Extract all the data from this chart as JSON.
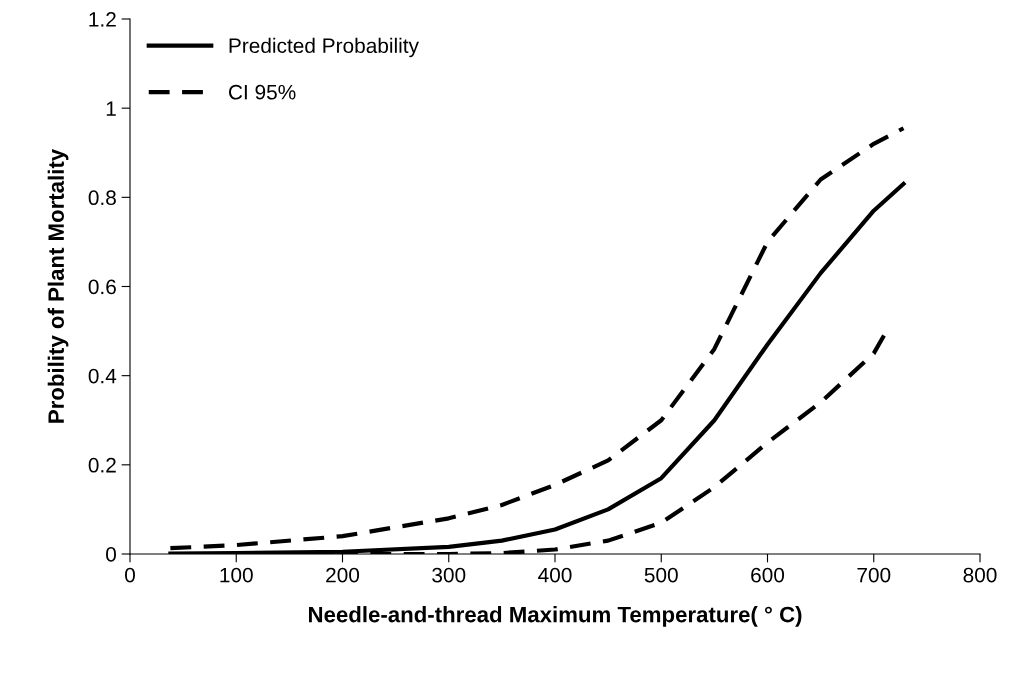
{
  "chart_data": {
    "type": "line",
    "xlabel": "Needle-and-thread Maximum Temperature( ° C)",
    "ylabel": "Probility of Plant Mortality",
    "xlim": [
      0,
      800
    ],
    "xticks": [
      0,
      100,
      200,
      300,
      400,
      500,
      600,
      700,
      800
    ],
    "ylim": [
      0,
      1.2
    ],
    "yticks": [
      0,
      0.2,
      0.4,
      0.6,
      0.8,
      1,
      1.2
    ],
    "grid": false,
    "legend": "top left",
    "marker": "none",
    "series": [
      {
        "name": "Predicted Probability",
        "color": "#000000",
        "line_style": "solid",
        "x": [
          38,
          100,
          200,
          300,
          350,
          400,
          450,
          500,
          550,
          600,
          650,
          700,
          728
        ],
        "values": [
          0.001,
          0.002,
          0.005,
          0.016,
          0.03,
          0.055,
          0.1,
          0.17,
          0.3,
          0.47,
          0.63,
          0.77,
          0.83
        ]
      },
      {
        "name": "CI 95%",
        "color": "#000000",
        "line_style": "dashed",
        "x": [
          38,
          100,
          200,
          300,
          350,
          400,
          450,
          500,
          550,
          600,
          650,
          700,
          728
        ],
        "values": [
          0.013,
          0.02,
          0.04,
          0.08,
          0.11,
          0.155,
          0.21,
          0.3,
          0.46,
          0.7,
          0.84,
          0.92,
          0.955
        ]
      },
      {
        "color": "#000000",
        "line_style": "dashed",
        "x": [
          38,
          100,
          200,
          300,
          350,
          400,
          450,
          500,
          550,
          600,
          650,
          700,
          712
        ],
        "values": [
          0,
          0,
          0,
          0,
          0.002,
          0.01,
          0.03,
          0.07,
          0.15,
          0.25,
          0.34,
          0.45,
          0.5
        ]
      }
    ]
  }
}
